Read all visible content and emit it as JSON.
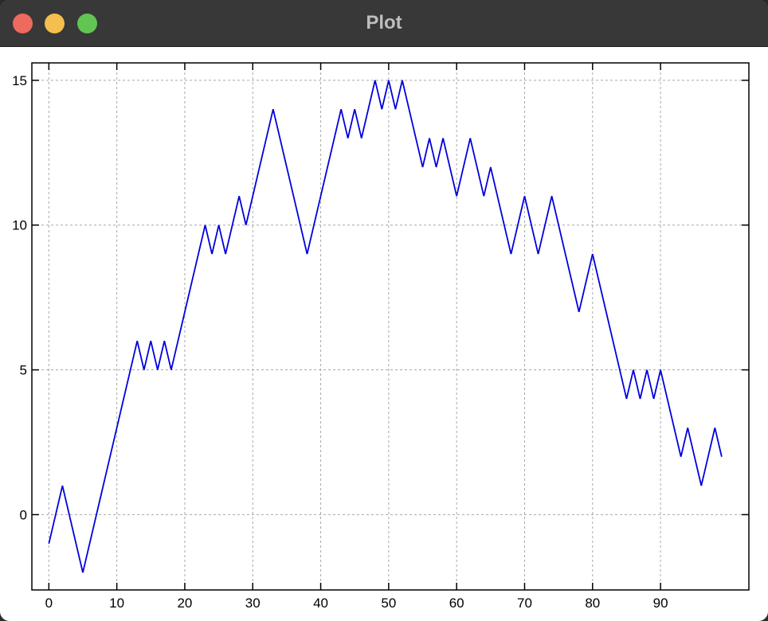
{
  "window": {
    "title": "Plot"
  },
  "chart_data": {
    "type": "line",
    "title": "",
    "xlabel": "",
    "ylabel": "",
    "xlim": [
      -2.5,
      103
    ],
    "ylim": [
      -2.6,
      15.6
    ],
    "grid": true,
    "x_ticks": [
      0,
      10,
      20,
      30,
      40,
      50,
      60,
      70,
      80,
      90
    ],
    "y_ticks": [
      0,
      5,
      10,
      15
    ],
    "x_tick_labels": [
      "0",
      "10",
      "20",
      "30",
      "40",
      "50",
      "60",
      "70",
      "80",
      "90"
    ],
    "y_tick_labels": [
      "0",
      "5",
      "10",
      "15"
    ],
    "line_color": "#0000dd",
    "grid_color": "#a8a8a8",
    "series": [
      {
        "values": [
          -1,
          0,
          1,
          0,
          -1,
          -2,
          -1,
          0,
          1,
          2,
          3,
          4,
          5,
          6,
          5,
          6,
          5,
          6,
          5,
          6,
          7,
          8,
          9,
          10,
          9,
          10,
          9,
          10,
          11,
          10,
          11,
          12,
          13,
          14,
          13,
          12,
          11,
          10,
          9,
          10,
          11,
          12,
          13,
          14,
          13,
          14,
          13,
          14,
          15,
          14,
          15,
          14,
          15,
          14,
          13,
          12,
          13,
          12,
          13,
          12,
          11,
          12,
          13,
          12,
          11,
          12,
          11,
          10,
          9,
          10,
          11,
          10,
          9,
          10,
          11,
          10,
          9,
          8,
          7,
          8,
          9,
          8,
          7,
          6,
          5,
          4,
          5,
          4,
          5,
          4,
          5,
          4,
          3,
          2,
          3,
          2,
          1,
          2,
          3,
          2
        ]
      }
    ]
  }
}
